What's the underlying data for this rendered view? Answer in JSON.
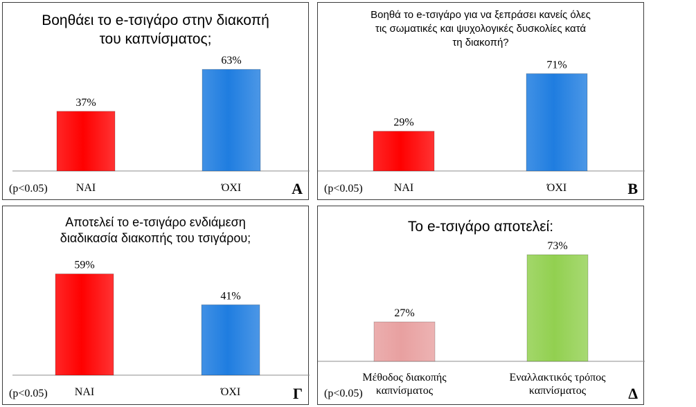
{
  "chart_data": [
    {
      "type": "bar",
      "title": "Βοηθάει το e-τσιγάρο στην διακοπή\nτου καπνίσματος;",
      "categories": [
        "NAI",
        "ΌΧΙ"
      ],
      "values": [
        37,
        63
      ],
      "value_labels": [
        "37%",
        "63%"
      ],
      "bar_colors": [
        "#ff0000",
        "#1f7de0"
      ],
      "ylim": [
        0,
        100
      ],
      "pvalue": "(p<0.05)",
      "panel_letter": "A"
    },
    {
      "type": "bar",
      "title": "Βοηθά το e-τσιγάρο για να ξεπράσει κανείς όλες\nτις σωματικές και ψυχολογικές δυσκολίες κατά\nτη διακοπή?",
      "categories": [
        "NAI",
        "ΌΧΙ"
      ],
      "values": [
        29,
        71
      ],
      "value_labels": [
        "29%",
        "71%"
      ],
      "bar_colors": [
        "#ff0000",
        "#1f7de0"
      ],
      "ylim": [
        0,
        100
      ],
      "pvalue": "(p<0.05)",
      "panel_letter": "B"
    },
    {
      "type": "bar",
      "title": "Αποτελεί το e-τσιγάρο  ενδιάμεση\nδιαδικασία διακοπής του τσιγάρου;",
      "categories": [
        "NAI",
        "ΌΧΙ"
      ],
      "values": [
        59,
        41
      ],
      "value_labels": [
        "59%",
        "41%"
      ],
      "bar_colors": [
        "#ff0000",
        "#1f7de0"
      ],
      "ylim": [
        0,
        100
      ],
      "pvalue": "(p<0.05)",
      "panel_letter": "Γ"
    },
    {
      "type": "bar",
      "title": "Το e-τσιγάρο αποτελεί:",
      "categories": [
        "Μέθοδος διακοπής\nκαπνίσματος",
        "Εναλλακτικός τρόπος\nκαπνίσματος"
      ],
      "values": [
        27,
        73
      ],
      "value_labels": [
        "27%",
        "73%"
      ],
      "bar_colors": [
        "#e8a0a0",
        "#92d050"
      ],
      "ylim": [
        0,
        100
      ],
      "pvalue": "(p<0.05)",
      "panel_letter": "Δ"
    }
  ]
}
